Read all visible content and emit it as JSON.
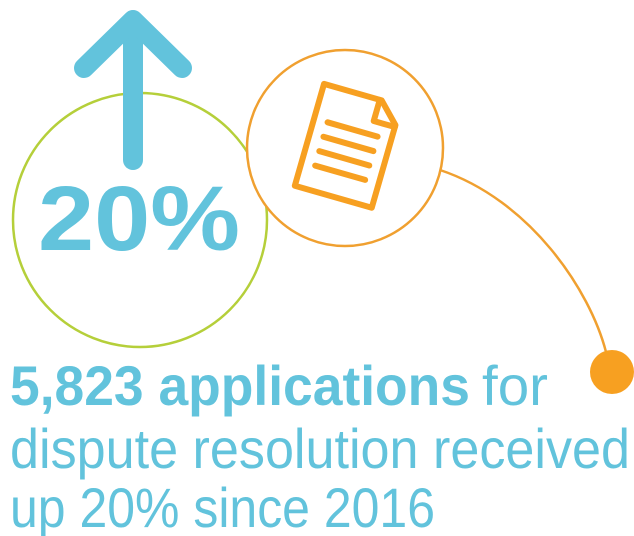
{
  "stat": {
    "value_text": "20%"
  },
  "headline": {
    "bold": "5,823 applications",
    "rest": "for",
    "line2": "dispute resolution received",
    "line3": "up 20% since 2016"
  }
}
